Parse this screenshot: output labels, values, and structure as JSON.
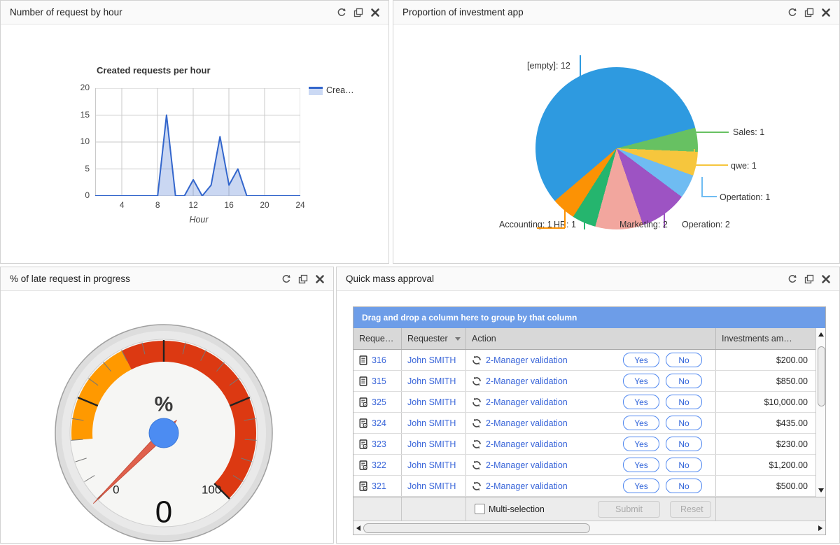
{
  "hour_panel": {
    "title": "Number of request by hour"
  },
  "pie_panel": {
    "title": "Proportion of investment app"
  },
  "gauge_panel": {
    "title": "% of late request in progress"
  },
  "table_panel": {
    "title": "Quick mass approval",
    "drag_hint": "Drag and drop a column here to group by that column",
    "columns": [
      "Reque…",
      "Requester",
      "Action",
      "Investments am…"
    ],
    "yes_label": "Yes",
    "no_label": "No",
    "rows": [
      {
        "icon": "document",
        "id": "316",
        "requester": "John SMITH",
        "action": "2-Manager validation",
        "amount": "$200.00"
      },
      {
        "icon": "document",
        "id": "315",
        "requester": "John SMITH",
        "action": "2-Manager validation",
        "amount": "$850.00"
      },
      {
        "icon": "document-gear",
        "id": "325",
        "requester": "John SMITH",
        "action": "2-Manager validation",
        "amount": "$10,000.00"
      },
      {
        "icon": "document-gear",
        "id": "324",
        "requester": "John SMITH",
        "action": "2-Manager validation",
        "amount": "$435.00"
      },
      {
        "icon": "document-gear",
        "id": "323",
        "requester": "John SMITH",
        "action": "2-Manager validation",
        "amount": "$230.00"
      },
      {
        "icon": "document-gear",
        "id": "322",
        "requester": "John SMITH",
        "action": "2-Manager validation",
        "amount": "$1,200.00"
      },
      {
        "icon": "document-gear",
        "id": "321",
        "requester": "John SMITH",
        "action": "2-Manager validation",
        "amount": "$500.00"
      }
    ],
    "footer": {
      "multi_selection_label": "Multi-selection",
      "submit_label": "Submit",
      "reset_label": "Reset"
    },
    "accent_colors": {
      "drag_bar": "#6d9de8",
      "link": "#3a66d9",
      "button_border": "#4f87f0"
    }
  },
  "chart_data": [
    {
      "type": "area",
      "title": "Created requests per hour",
      "xlabel": "Hour",
      "legend": [
        "Crea…"
      ],
      "x": [
        1,
        2,
        3,
        4,
        5,
        6,
        7,
        8,
        9,
        10,
        11,
        12,
        13,
        14,
        15,
        16,
        17,
        18,
        19,
        20,
        21,
        22,
        23,
        24
      ],
      "values": [
        0,
        0,
        0,
        0,
        0,
        0,
        0,
        0,
        15,
        0,
        0,
        3,
        0,
        2,
        11,
        2,
        5,
        0,
        0,
        0,
        0,
        0,
        0,
        0
      ],
      "xticks": [
        4,
        8,
        12,
        16,
        20,
        24
      ],
      "yticks": [
        0,
        5,
        10,
        15,
        20
      ],
      "xlim": [
        1,
        24
      ],
      "ylim": [
        0,
        20
      ],
      "line_color": "#3366CC",
      "fill_color": "rgba(51,102,204,0.26)",
      "grid": true,
      "legend_position": "right"
    },
    {
      "type": "pie",
      "title": "Proportion of investment app",
      "start_angle_deg": 229.6,
      "slices": [
        {
          "label": "[empty]",
          "value": 12,
          "color": "#2E9AE0"
        },
        {
          "label": "Sales",
          "value": 1,
          "color": "#67C162"
        },
        {
          "label": "qwe",
          "value": 1,
          "color": "#F6C63D"
        },
        {
          "label": "Opertation",
          "value": 1,
          "color": "#6FBCF2"
        },
        {
          "label": "Operation",
          "value": 2,
          "color": "#9D53C3"
        },
        {
          "label": "Marketing",
          "value": 2,
          "color": "#F2A69E"
        },
        {
          "label": "HR",
          "value": 1,
          "color": "#25B56E"
        },
        {
          "label": "Accounting",
          "value": 1,
          "color": "#FC9204"
        }
      ]
    },
    {
      "type": "gauge",
      "min": 0,
      "max": 100,
      "value": 0,
      "unit_label": "%",
      "value_label": "0",
      "min_label": "0",
      "max_label": "100",
      "bands": [
        {
          "from": 15,
          "to": 40,
          "color": "#FF9900"
        },
        {
          "from": 40,
          "to": 100,
          "color": "#DC3912"
        }
      ],
      "needle_color": "#E0604C",
      "hub_color": "#4C8CF2"
    }
  ]
}
